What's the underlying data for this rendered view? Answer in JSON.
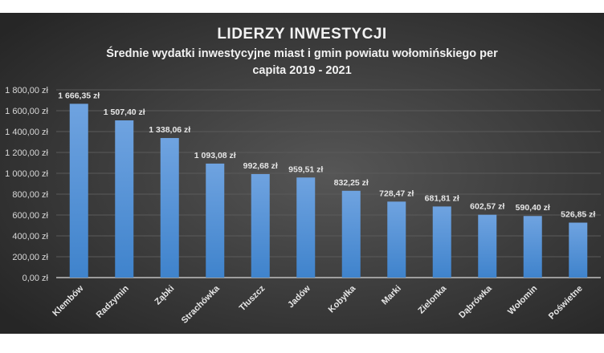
{
  "chart_data": {
    "type": "bar",
    "title": "LIDERZY INWESTYCJI",
    "subtitle_lines": [
      "Średnie wydatki inwestycyjne miast i gmin powiatu wołomińskiego per",
      "capita 2019 - 2021"
    ],
    "xlabel": "",
    "ylabel": "",
    "ylim": [
      0,
      1800
    ],
    "grid": true,
    "yticks": [
      0,
      200,
      400,
      600,
      800,
      1000,
      1200,
      1400,
      1600,
      1800
    ],
    "ytick_labels": [
      "0,00 zł",
      "200,00 zł",
      "400,00 zł",
      "600,00 zł",
      "800,00 zł",
      "1 000,00 zł",
      "1 200,00 zł",
      "1 400,00 zł",
      "1 600,00 zł",
      "1 800,00 zł"
    ],
    "categories": [
      "Klembów",
      "Radzymin",
      "Ząbki",
      "Strachówka",
      "Tłuszcz",
      "Jadów",
      "Kobyłka",
      "Marki",
      "Zielonka",
      "Dąbrówka",
      "Wołomin",
      "Poświetne"
    ],
    "values": [
      1666.35,
      1507.4,
      1338.06,
      1093.08,
      992.68,
      959.51,
      832.25,
      728.47,
      681.81,
      602.57,
      590.4,
      526.85
    ],
    "data_labels": [
      "1 666,35 zł",
      "1 507,40 zł",
      "1 338,06 zł",
      "1 093,08 zł",
      "992,68 zł",
      "959,51 zł",
      "832,25 zł",
      "728,47 zł",
      "681,81 zł",
      "602,57 zł",
      "590,40 zł",
      "526,85 zł"
    ],
    "colors": {
      "bar_top": "#6fa3e0",
      "bar_bottom": "#3f83cc",
      "background_center": "#555555",
      "background_edge": "#262626"
    }
  }
}
